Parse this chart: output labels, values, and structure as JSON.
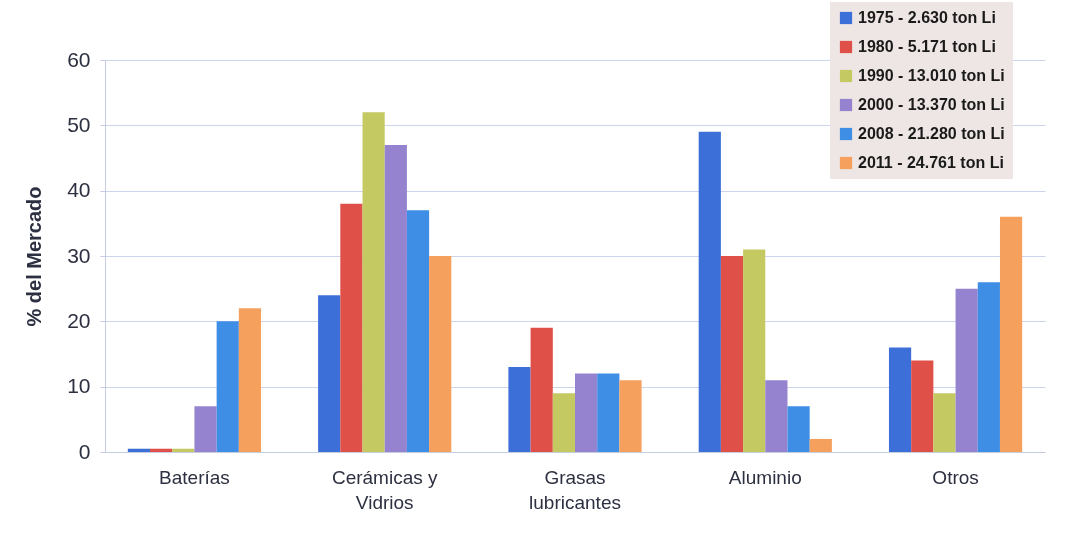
{
  "chart_data": {
    "type": "bar",
    "ylabel": "% del Mercado",
    "categories": [
      "Baterías",
      "Cerámicas y Vidrios",
      "Grasas lubricantes",
      "Aluminio",
      "Otros"
    ],
    "series": [
      {
        "name": "1975 - 2.630 ton Li",
        "color": "#3d6fd8",
        "values": [
          0.5,
          24,
          13,
          49,
          16
        ]
      },
      {
        "name": "1980 - 5.171 ton Li",
        "color": "#de5048",
        "values": [
          0.5,
          38,
          19,
          30,
          14
        ]
      },
      {
        "name": "1990 - 13.010 ton Li",
        "color": "#c5c962",
        "values": [
          0.5,
          52,
          9,
          31,
          9
        ]
      },
      {
        "name": "2000 - 13.370 ton Li",
        "color": "#9683cf",
        "values": [
          7,
          47,
          12,
          11,
          25
        ]
      },
      {
        "name": "2008 - 21.280 ton Li",
        "color": "#3f8ee6",
        "values": [
          20,
          37,
          12,
          7,
          26
        ]
      },
      {
        "name": "2011 - 24.761 ton Li",
        "color": "#f6a05e",
        "values": [
          22,
          30,
          11,
          2,
          36
        ]
      }
    ],
    "ylim": [
      0,
      60
    ],
    "yticks": [
      0,
      10,
      20,
      30,
      40,
      50,
      60
    ],
    "grid": "y",
    "legend": "top right"
  }
}
